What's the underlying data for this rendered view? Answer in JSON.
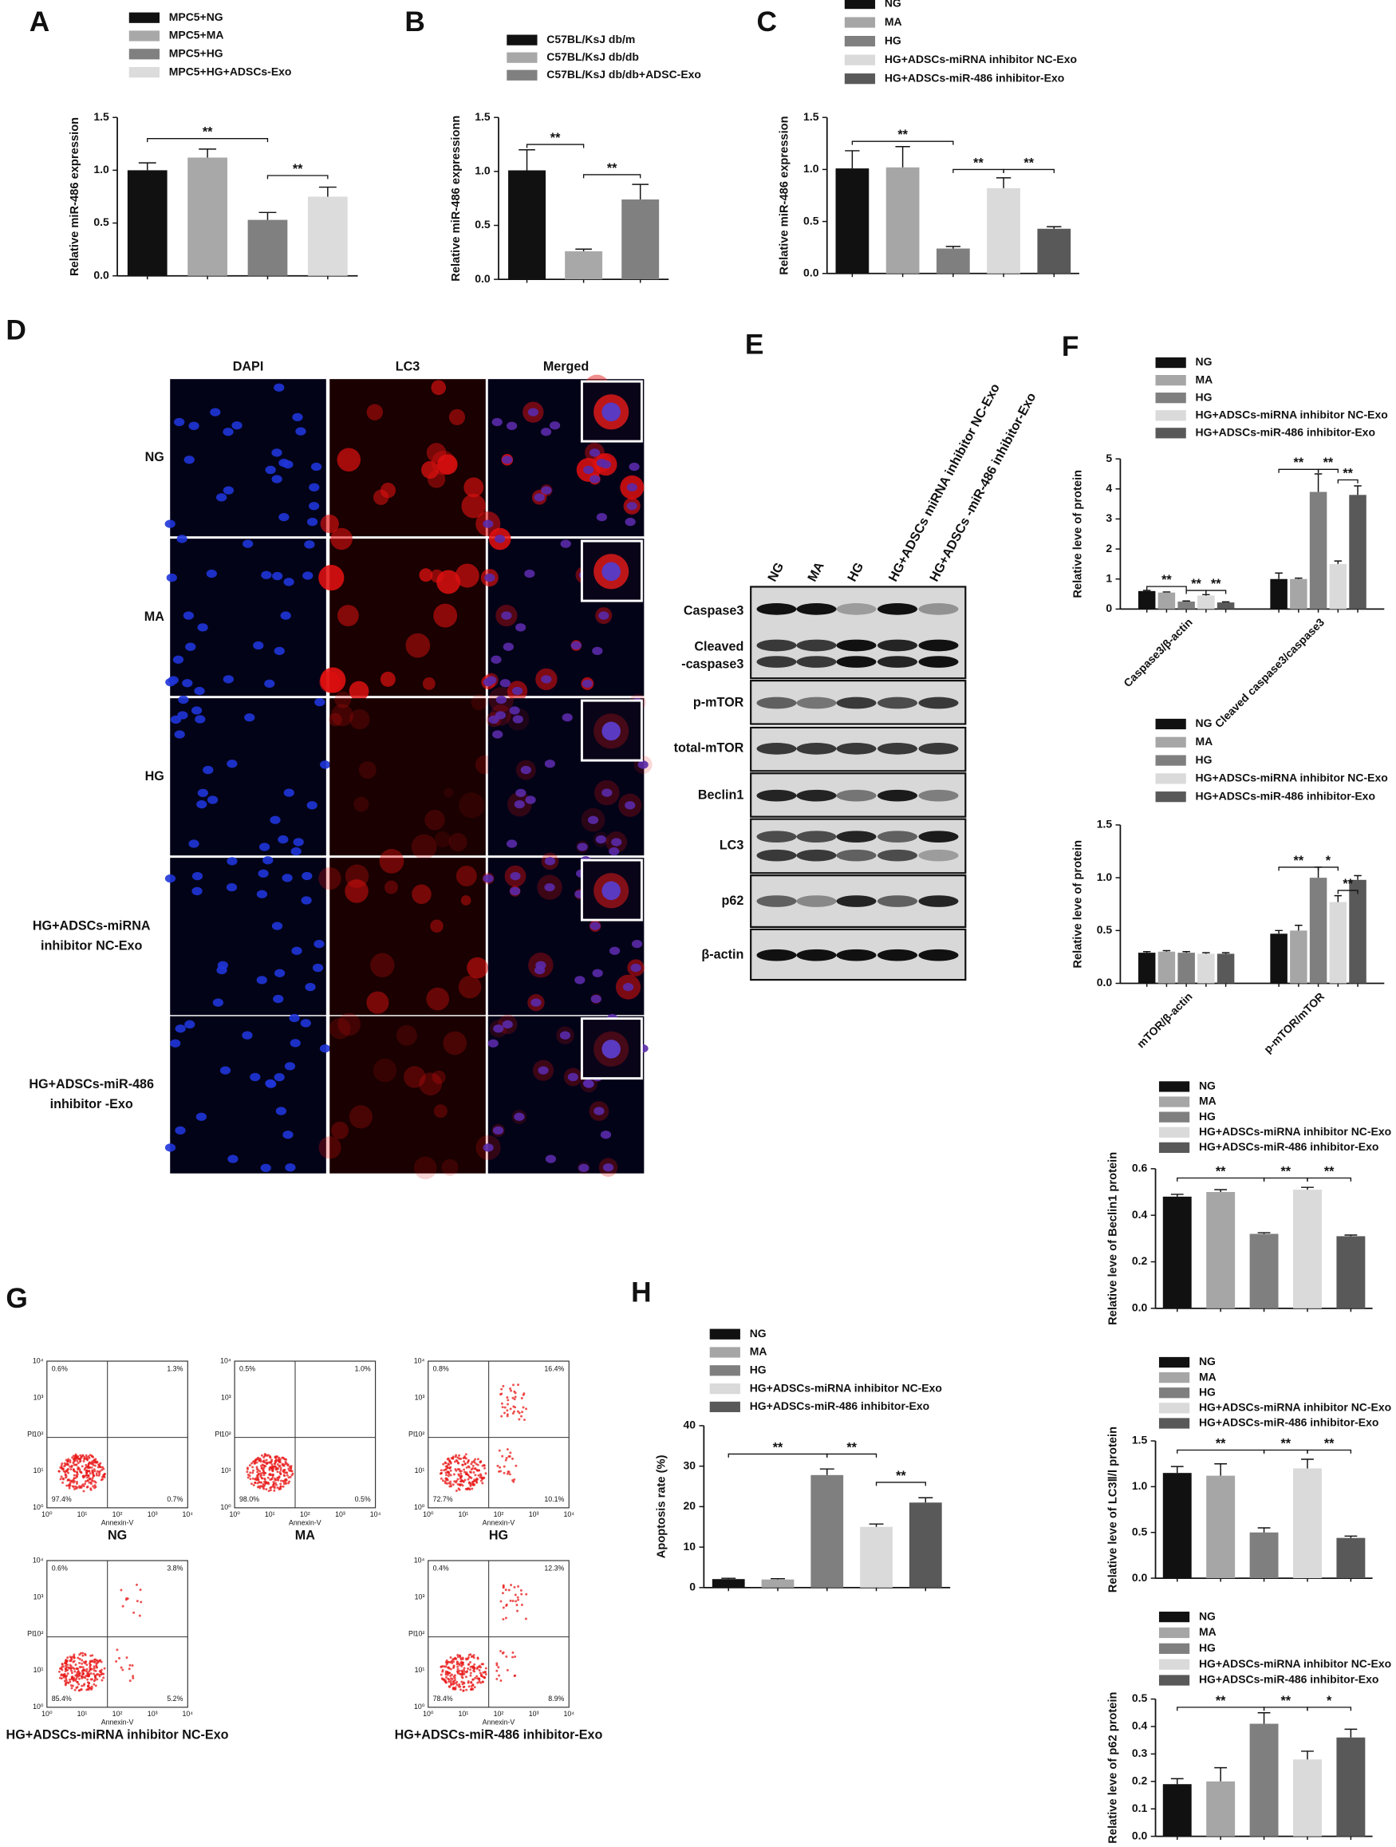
{
  "panel_labels": {
    "A": "A",
    "B": "B",
    "C": "C",
    "D": "D",
    "E": "E",
    "F": "F",
    "G": "G",
    "H": "H"
  },
  "chart_data": [
    {
      "type": "bar",
      "ylabel": "Relative miR-486 expression",
      "ylim": [
        0,
        1.5
      ],
      "yticks": [
        {
          "value": 0,
          "label": "0.0"
        },
        {
          "value": 0.5,
          "label": "0.5"
        },
        {
          "value": 1,
          "label": "1.0"
        },
        {
          "value": 1.5,
          "label": "1.5"
        }
      ],
      "series": [
        {
          "name": "MPC5+NG",
          "color": "#111111",
          "values": [
            1.0
          ],
          "errors": [
            0.07
          ]
        },
        {
          "name": "MPC5+MA",
          "color": "#a8a8a8",
          "values": [
            1.12
          ],
          "errors": [
            0.08
          ]
        },
        {
          "name": "MPC5+HG",
          "color": "#808080",
          "values": [
            0.53
          ],
          "errors": [
            0.07
          ]
        },
        {
          "name": "MPC5+HG+ADSCs-Exo",
          "color": "#dcdcdc",
          "values": [
            0.75
          ],
          "errors": [
            0.09
          ]
        }
      ],
      "annotations": [
        "**",
        "**"
      ]
    },
    {
      "type": "bar",
      "ylabel": "Relative miR-486 expressionn",
      "ylim": [
        0,
        1.5
      ],
      "yticks": [
        {
          "value": 0,
          "label": "0.0"
        },
        {
          "value": 0.5,
          "label": "0.5"
        },
        {
          "value": 1,
          "label": "1.0"
        },
        {
          "value": 1.5,
          "label": "1.5"
        }
      ],
      "series": [
        {
          "name": "C57BL/KsJ db/m",
          "color": "#111111",
          "values": [
            1.01
          ],
          "errors": [
            0.19
          ]
        },
        {
          "name": "C57BL/KsJ db/db",
          "color": "#a8a8a8",
          "values": [
            0.26
          ],
          "errors": [
            0.02
          ]
        },
        {
          "name": "C57BL/KsJ db/db+ADSC-Exo",
          "color": "#808080",
          "values": [
            0.74
          ],
          "errors": [
            0.14
          ]
        }
      ],
      "annotations": [
        "**",
        "**"
      ]
    },
    {
      "type": "bar",
      "ylabel": "Relative miR-486 expression",
      "ylim": [
        0,
        1.5
      ],
      "yticks": [
        {
          "value": 0,
          "label": "0.0"
        },
        {
          "value": 0.5,
          "label": "0.5"
        },
        {
          "value": 1,
          "label": "1.0"
        },
        {
          "value": 1.5,
          "label": "1.5"
        }
      ],
      "series": [
        {
          "name": "NG",
          "color": "#111111",
          "values": [
            1.01
          ],
          "errors": [
            0.17
          ]
        },
        {
          "name": "MA",
          "color": "#a6a6a6",
          "values": [
            1.02
          ],
          "errors": [
            0.2
          ]
        },
        {
          "name": "HG",
          "color": "#7f7f7f",
          "values": [
            0.24
          ],
          "errors": [
            0.02
          ]
        },
        {
          "name": "HG+ADSCs-miRNA inhibitor NC-Exo",
          "color": "#dadada",
          "values": [
            0.82
          ],
          "errors": [
            0.1
          ]
        },
        {
          "name": "HG+ADSCs-miR-486 inhibitor-Exo",
          "color": "#595959",
          "values": [
            0.43
          ],
          "errors": [
            0.02
          ]
        }
      ],
      "annotations": [
        "**",
        "**",
        "**"
      ]
    },
    {
      "type": "bar",
      "ylabel": "Relative leve of protein",
      "ylim": [
        0,
        5
      ],
      "yticks": [
        0,
        1,
        2,
        3,
        4,
        5
      ],
      "categories": [
        "Caspase3/β-actin",
        "Cleaved caspase3/caspase3"
      ],
      "series": [
        {
          "name": "NG",
          "color": "#111111",
          "values": [
            0.6,
            1.0
          ],
          "errors": [
            0.02,
            0.2
          ]
        },
        {
          "name": "MA",
          "color": "#a6a6a6",
          "values": [
            0.55,
            1.0
          ],
          "errors": [
            0.02,
            0.03
          ]
        },
        {
          "name": "HG",
          "color": "#7f7f7f",
          "values": [
            0.25,
            3.9
          ],
          "errors": [
            0.02,
            0.6
          ]
        },
        {
          "name": "HG+ADSCs-miRNA inhibitor NC-Exo",
          "color": "#dadada",
          "values": [
            0.45,
            1.5
          ],
          "errors": [
            0.03,
            0.1
          ]
        },
        {
          "name": "HG+ADSCs-miR-486 inhibitor-Exo",
          "color": "#595959",
          "values": [
            0.22,
            3.8
          ],
          "errors": [
            0.02,
            0.3
          ]
        }
      ],
      "annotations": [
        "**",
        "**",
        "**",
        "**",
        "**",
        "**"
      ]
    },
    {
      "type": "bar",
      "ylabel": "Relative leve of protein",
      "ylim": [
        0,
        1.5
      ],
      "yticks": [
        {
          "value": 0,
          "label": "0.0"
        },
        {
          "value": 0.5,
          "label": "0.5"
        },
        {
          "value": 1,
          "label": "1.0"
        },
        {
          "value": 1.5,
          "label": "1.5"
        }
      ],
      "categories": [
        "mTOR/β-actin",
        "p-mTOR/mTOR"
      ],
      "series": [
        {
          "name": "NG",
          "color": "#111111",
          "values": [
            0.29,
            0.47
          ],
          "errors": [
            0.01,
            0.03
          ]
        },
        {
          "name": "MA",
          "color": "#a6a6a6",
          "values": [
            0.3,
            0.5
          ],
          "errors": [
            0.01,
            0.05
          ]
        },
        {
          "name": "HG",
          "color": "#7f7f7f",
          "values": [
            0.29,
            1.0
          ],
          "errors": [
            0.01,
            0.1
          ]
        },
        {
          "name": "HG+ADSCs-miRNA inhibitor NC-Exo",
          "color": "#dadada",
          "values": [
            0.28,
            0.77
          ],
          "errors": [
            0.01,
            0.06
          ]
        },
        {
          "name": "HG+ADSCs-miR-486 inhibitor-Exo",
          "color": "#595959",
          "values": [
            0.28,
            0.98
          ],
          "errors": [
            0.01,
            0.04
          ]
        }
      ],
      "annotations": [
        "**",
        "*",
        "**"
      ]
    },
    {
      "type": "bar",
      "ylabel": "Relative leve of Beclin1 protein",
      "ylim": [
        0,
        0.6
      ],
      "yticks": [
        {
          "value": 0,
          "label": "0.0"
        },
        {
          "value": 0.2,
          "label": "0.2"
        },
        {
          "value": 0.4,
          "label": "0.4"
        },
        {
          "value": 0.6,
          "label": "0.6"
        }
      ],
      "series": [
        {
          "name": "NG",
          "color": "#111111",
          "values": [
            0.48
          ],
          "errors": [
            0.01
          ]
        },
        {
          "name": "MA",
          "color": "#a6a6a6",
          "values": [
            0.5
          ],
          "errors": [
            0.01
          ]
        },
        {
          "name": "HG",
          "color": "#7f7f7f",
          "values": [
            0.32
          ],
          "errors": [
            0.005
          ]
        },
        {
          "name": "HG+ADSCs-miRNA inhibitor NC-Exo",
          "color": "#dadada",
          "values": [
            0.51
          ],
          "errors": [
            0.01
          ]
        },
        {
          "name": "HG+ADSCs-miR-486 inhibitor-Exo",
          "color": "#595959",
          "values": [
            0.31
          ],
          "errors": [
            0.005
          ]
        }
      ],
      "annotations": [
        "**",
        "**",
        "**"
      ]
    },
    {
      "type": "bar",
      "ylabel": "Relative leve of LC3Ⅱ/Ⅰ protein",
      "ylim": [
        0,
        1.5
      ],
      "yticks": [
        {
          "value": 0,
          "label": "0.0"
        },
        {
          "value": 0.5,
          "label": "0.5"
        },
        {
          "value": 1,
          "label": "1.0"
        },
        {
          "value": 1.5,
          "label": "1.5"
        }
      ],
      "series": [
        {
          "name": "NG",
          "color": "#111111",
          "values": [
            1.15
          ],
          "errors": [
            0.07
          ]
        },
        {
          "name": "MA",
          "color": "#a6a6a6",
          "values": [
            1.12
          ],
          "errors": [
            0.13
          ]
        },
        {
          "name": "HG",
          "color": "#7f7f7f",
          "values": [
            0.5
          ],
          "errors": [
            0.05
          ]
        },
        {
          "name": "HG+ADSCs-miRNA inhibitor NC-Exo",
          "color": "#dadada",
          "values": [
            1.2
          ],
          "errors": [
            0.1
          ]
        },
        {
          "name": "HG+ADSCs-miR-486 inhibitor-Exo",
          "color": "#595959",
          "values": [
            0.44
          ],
          "errors": [
            0.02
          ]
        }
      ],
      "annotations": [
        "**",
        "**",
        "**"
      ]
    },
    {
      "type": "bar",
      "ylabel": "Relative leve of p62 protein",
      "ylim": [
        0,
        0.5
      ],
      "yticks": [
        {
          "value": 0,
          "label": "0.0"
        },
        0.1,
        0.2,
        0.3,
        0.4,
        0.5
      ],
      "series": [
        {
          "name": "NG",
          "color": "#111111",
          "values": [
            0.19
          ],
          "errors": [
            0.02
          ]
        },
        {
          "name": "MA",
          "color": "#a6a6a6",
          "values": [
            0.2
          ],
          "errors": [
            0.05
          ]
        },
        {
          "name": "HG",
          "color": "#7f7f7f",
          "values": [
            0.41
          ],
          "errors": [
            0.04
          ]
        },
        {
          "name": "HG+ADSCs-miRNA inhibitor NC-Exo",
          "color": "#dadada",
          "values": [
            0.28
          ],
          "errors": [
            0.03
          ]
        },
        {
          "name": "HG+ADSCs-miR-486 inhibitor-Exo",
          "color": "#595959",
          "values": [
            0.36
          ],
          "errors": [
            0.03
          ]
        }
      ],
      "annotations": [
        "**",
        "**",
        "*"
      ]
    },
    {
      "type": "bar",
      "ylabel": "Apoptosis rate (%)",
      "ylim": [
        0,
        40
      ],
      "yticks": [
        0,
        10,
        20,
        30,
        40
      ],
      "series": [
        {
          "name": "NG",
          "color": "#111111",
          "values": [
            2.1
          ],
          "errors": [
            0.2
          ]
        },
        {
          "name": "MA",
          "color": "#a6a6a6",
          "values": [
            2.0
          ],
          "errors": [
            0.2
          ]
        },
        {
          "name": "HG",
          "color": "#7f7f7f",
          "values": [
            27.8
          ],
          "errors": [
            1.5
          ]
        },
        {
          "name": "HG+ADSCs-miRNA inhibitor NC-Exo",
          "color": "#dadada",
          "values": [
            15
          ],
          "errors": [
            0.7
          ]
        },
        {
          "name": "HG+ADSCs-miR-486 inhibitor-Exo",
          "color": "#595959",
          "values": [
            21
          ],
          "errors": [
            1.2
          ]
        }
      ],
      "annotations": [
        "**",
        "**",
        "**"
      ]
    }
  ],
  "microscopy": {
    "columns": [
      "DAPI",
      "LC3",
      "Merged"
    ],
    "rows": [
      [
        "NG"
      ],
      [
        "MA"
      ],
      [
        "HG"
      ],
      [
        "HG+ADSCs-miRNA",
        "inhibitor NC-Exo"
      ],
      [
        "HG+ADSCs-miR-486",
        "inhibitor -Exo"
      ]
    ]
  },
  "western_blot": {
    "lanes": [
      "NG",
      "MA",
      "HG",
      "HG+ADSCs miRNA inhibitor NC-Exo",
      "HG+ADSCs -miR-486 inhibitor-Exo"
    ],
    "rows": [
      [
        "Caspase3"
      ],
      [
        "Cleaved",
        "-caspase3"
      ],
      [
        "p-mTOR"
      ],
      [
        "total-mTOR"
      ],
      [
        "Beclin1"
      ],
      [
        "LC3"
      ],
      [
        "p62"
      ],
      [
        "β-actin"
      ]
    ]
  },
  "flow": {
    "x_label": "Annexin-V",
    "y_label": "PI",
    "ticks": [
      "10⁰",
      "10¹",
      "10²",
      "10³",
      "10⁴"
    ],
    "plots": [
      {
        "label": "NG",
        "quadrants": [
          "0.6%",
          "1.3%",
          "97.4%",
          "0.7%"
        ]
      },
      {
        "label": "MA",
        "quadrants": [
          "0.5%",
          "1.0%",
          "98.0%",
          "0.5%"
        ]
      },
      {
        "label": "HG",
        "quadrants": [
          "0.8%",
          "16.4%",
          "72.7%",
          "10.1%"
        ]
      },
      {
        "label": "HG+ADSCs-miRNA inhibitor NC-Exo",
        "quadrants": [
          "0.6%",
          "3.8%",
          "85.4%",
          "5.2%"
        ]
      },
      {
        "label": "HG+ADSCs-miR-486 inhibitor-Exo",
        "quadrants": [
          "0.4%",
          "12.3%",
          "78.4%",
          "8.9%"
        ]
      }
    ]
  }
}
